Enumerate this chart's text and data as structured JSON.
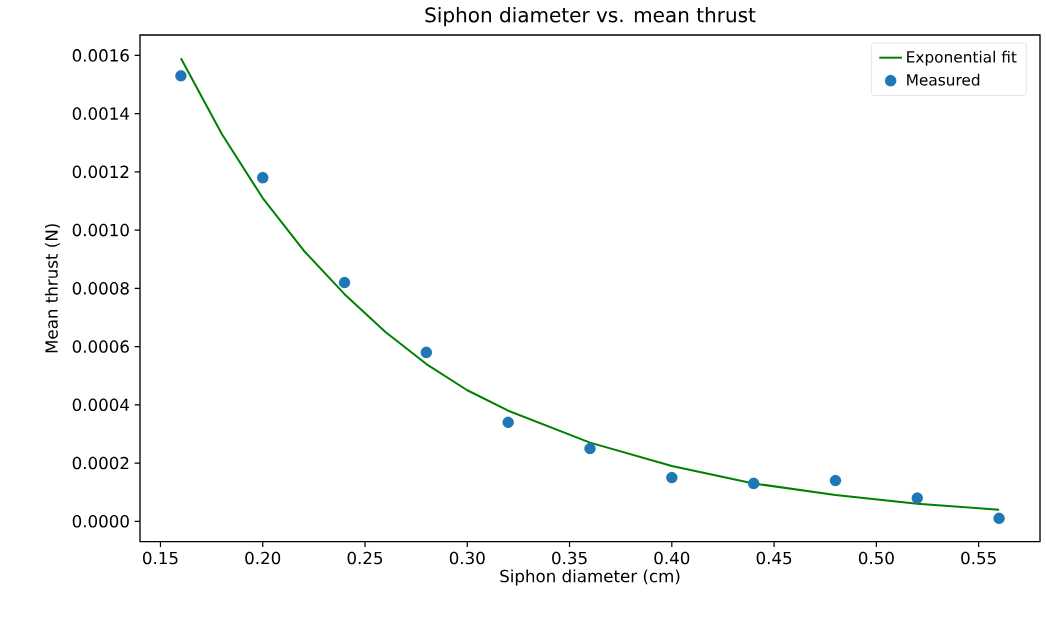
{
  "chart_data": {
    "type": "scatter",
    "title": "Siphon diameter vs. mean thrust",
    "xlabel": "Siphon diameter (cm)",
    "ylabel": "Mean thrust (N)",
    "xlim": [
      0.14,
      0.58
    ],
    "ylim": [
      -7e-05,
      0.00167
    ],
    "xticks": [
      {
        "value": 0.15,
        "label": "0.15"
      },
      {
        "value": 0.2,
        "label": "0.20"
      },
      {
        "value": 0.25,
        "label": "0.25"
      },
      {
        "value": 0.3,
        "label": "0.30"
      },
      {
        "value": 0.35,
        "label": "0.35"
      },
      {
        "value": 0.4,
        "label": "0.40"
      },
      {
        "value": 0.45,
        "label": "0.45"
      },
      {
        "value": 0.5,
        "label": "0.50"
      },
      {
        "value": 0.55,
        "label": "0.55"
      }
    ],
    "yticks": [
      {
        "value": 0,
        "label": "0.0000"
      },
      {
        "value": 0.0002,
        "label": "0.0002"
      },
      {
        "value": 0.0004,
        "label": "0.0004"
      },
      {
        "value": 0.0006,
        "label": "0.0006"
      },
      {
        "value": 0.0008,
        "label": "0.0008"
      },
      {
        "value": 0.001,
        "label": "0.0010"
      },
      {
        "value": 0.0012,
        "label": "0.0012"
      },
      {
        "value": 0.0014,
        "label": "0.0014"
      },
      {
        "value": 0.0016,
        "label": "0.0016"
      }
    ],
    "legend": "top right",
    "marker": "circle",
    "series": [
      {
        "name": "Exponential fit",
        "type": "line",
        "marker": "none",
        "color": "#008000",
        "x": [
          0.16,
          0.18,
          0.2,
          0.22,
          0.24,
          0.26,
          0.28,
          0.3,
          0.32,
          0.36,
          0.4,
          0.44,
          0.48,
          0.52,
          0.56
        ],
        "values": [
          0.00159,
          0.00133,
          0.00111,
          0.00093,
          0.00078,
          0.00065,
          0.00054,
          0.00045,
          0.00038,
          0.00027,
          0.00019,
          0.00013,
          9e-05,
          6e-05,
          4e-05
        ]
      },
      {
        "name": "Measured",
        "color": "#1f77b4",
        "x": [
          0.16,
          0.2,
          0.24,
          0.28,
          0.32,
          0.36,
          0.4,
          0.44,
          0.48,
          0.52,
          0.56
        ],
        "values": [
          0.00153,
          0.00118,
          0.00082,
          0.00058,
          0.00034,
          0.00025,
          0.00015,
          0.00013,
          0.00014,
          8e-05,
          1e-05
        ]
      }
    ]
  }
}
